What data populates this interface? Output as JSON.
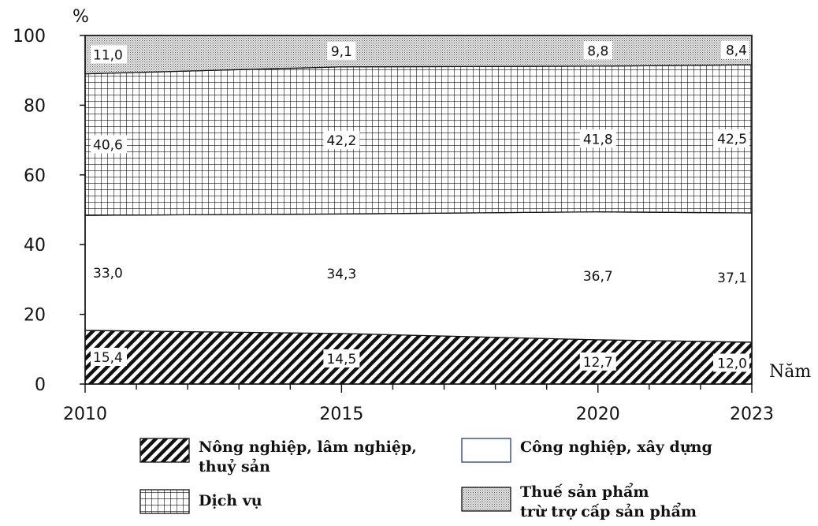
{
  "chart_data": {
    "type": "area",
    "stacked": true,
    "y_unit": "%",
    "xlabel": "Năm",
    "x": [
      2010,
      2015,
      2020,
      2023
    ],
    "x_ticks": [
      "2010",
      "2015",
      "2020",
      "2023"
    ],
    "y_ticks": [
      "0",
      "20",
      "40",
      "60",
      "80",
      "100"
    ],
    "ylim": [
      0,
      100
    ],
    "grid": false,
    "legend_position": "bottom",
    "series": [
      {
        "name": "Nông nghiệp, lâm nghiệp, thuỷ sản",
        "pattern": "diagonal-hatch",
        "values": [
          15.4,
          14.5,
          12.7,
          12.0
        ],
        "labels": [
          "15,4",
          "14,5",
          "12,7",
          "12,0"
        ]
      },
      {
        "name": "Công nghiệp, xây dựng",
        "pattern": "blank",
        "values": [
          33.0,
          34.3,
          36.7,
          37.1
        ],
        "labels": [
          "33,0",
          "34,3",
          "36,7",
          "37,1"
        ]
      },
      {
        "name": "Dịch vụ",
        "pattern": "grid",
        "values": [
          40.6,
          42.2,
          41.8,
          42.5
        ],
        "labels": [
          "40,6",
          "42,2",
          "41,8",
          "42,5"
        ]
      },
      {
        "name": "Thuế sản phẩm trừ trợ cấp sản phẩm",
        "pattern": "dotted",
        "values": [
          11.0,
          9.1,
          8.8,
          8.4
        ],
        "labels": [
          "11,0",
          "9,1",
          "8,8",
          "8,4"
        ]
      }
    ]
  },
  "legend": {
    "items": [
      {
        "key": "agri",
        "lines": [
          "Nông nghiệp, lâm nghiệp,",
          "thuỷ sản"
        ]
      },
      {
        "key": "industry",
        "lines": [
          "Công nghiệp, xây dựng"
        ]
      },
      {
        "key": "service",
        "lines": [
          "Dịch vụ"
        ]
      },
      {
        "key": "tax",
        "lines": [
          "Thuế sản phẩm",
          "trừ trợ cấp sản phẩm"
        ]
      }
    ]
  }
}
